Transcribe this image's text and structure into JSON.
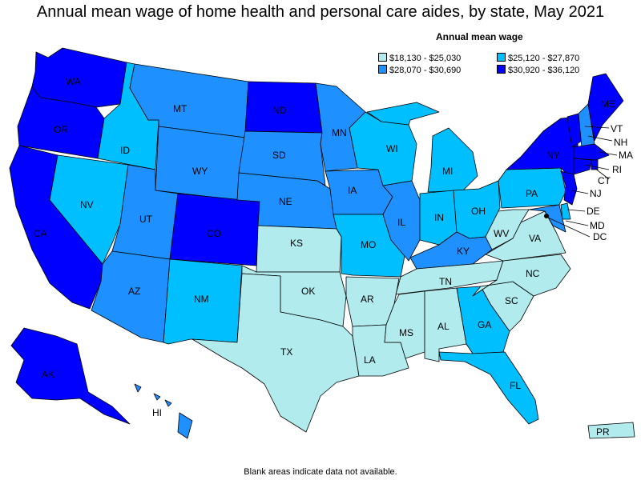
{
  "title": "Annual mean wage of home health and personal care aides, by state, May 2021",
  "legend": {
    "title": "Annual mean wage",
    "items": [
      {
        "label": "$18,130 - $25,030",
        "color": "#b2ebee"
      },
      {
        "label": "$25,120 - $27,870",
        "color": "#00bfff"
      },
      {
        "label": "$28,070 - $30,690",
        "color": "#1e90ff"
      },
      {
        "label": "$30,920 - $36,120",
        "color": "#0000ff"
      }
    ]
  },
  "footnote": "Blank areas indicate data not available.",
  "states": [
    {
      "code": "WA",
      "color": "#0000ff"
    },
    {
      "code": "OR",
      "color": "#0000ff"
    },
    {
      "code": "CA",
      "color": "#0000ff"
    },
    {
      "code": "ID",
      "color": "#00bfff"
    },
    {
      "code": "NV",
      "color": "#00bfff"
    },
    {
      "code": "MT",
      "color": "#1e90ff"
    },
    {
      "code": "WY",
      "color": "#1e90ff"
    },
    {
      "code": "UT",
      "color": "#1e90ff"
    },
    {
      "code": "AZ",
      "color": "#1e90ff"
    },
    {
      "code": "CO",
      "color": "#0000ff"
    },
    {
      "code": "NM",
      "color": "#00bfff"
    },
    {
      "code": "ND",
      "color": "#0000ff"
    },
    {
      "code": "SD",
      "color": "#1e90ff"
    },
    {
      "code": "NE",
      "color": "#1e90ff"
    },
    {
      "code": "KS",
      "color": "#b2ebee"
    },
    {
      "code": "OK",
      "color": "#b2ebee"
    },
    {
      "code": "TX",
      "color": "#b2ebee"
    },
    {
      "code": "MN",
      "color": "#1e90ff"
    },
    {
      "code": "IA",
      "color": "#1e90ff"
    },
    {
      "code": "MO",
      "color": "#00bfff"
    },
    {
      "code": "AR",
      "color": "#b2ebee"
    },
    {
      "code": "LA",
      "color": "#b2ebee"
    },
    {
      "code": "WI",
      "color": "#00bfff"
    },
    {
      "code": "IL",
      "color": "#1e90ff"
    },
    {
      "code": "MI",
      "color": "#00bfff"
    },
    {
      "code": "IN",
      "color": "#00bfff"
    },
    {
      "code": "OH",
      "color": "#00bfff"
    },
    {
      "code": "KY",
      "color": "#1e90ff"
    },
    {
      "code": "TN",
      "color": "#b2ebee"
    },
    {
      "code": "MS",
      "color": "#b2ebee"
    },
    {
      "code": "AL",
      "color": "#b2ebee"
    },
    {
      "code": "GA",
      "color": "#00bfff"
    },
    {
      "code": "FL",
      "color": "#00bfff"
    },
    {
      "code": "SC",
      "color": "#b2ebee"
    },
    {
      "code": "NC",
      "color": "#b2ebee"
    },
    {
      "code": "VA",
      "color": "#b2ebee"
    },
    {
      "code": "WV",
      "color": "#b2ebee"
    },
    {
      "code": "PA",
      "color": "#00bfff"
    },
    {
      "code": "NY",
      "color": "#0000ff"
    },
    {
      "code": "VT",
      "color": "#0000ff"
    },
    {
      "code": "NH",
      "color": "#1e90ff"
    },
    {
      "code": "ME",
      "color": "#0000ff"
    },
    {
      "code": "MA",
      "color": "#0000ff"
    },
    {
      "code": "RI",
      "color": "#0000ff"
    },
    {
      "code": "CT",
      "color": "#0000ff"
    },
    {
      "code": "NJ",
      "color": "#0000ff"
    },
    {
      "code": "DE",
      "color": "#00bfff"
    },
    {
      "code": "MD",
      "color": "#1e90ff"
    },
    {
      "code": "DC",
      "color": "#0000ff"
    },
    {
      "code": "AK",
      "color": "#0000ff"
    },
    {
      "code": "HI",
      "color": "#1e90ff"
    },
    {
      "code": "PR",
      "color": "#b2ebee"
    }
  ]
}
